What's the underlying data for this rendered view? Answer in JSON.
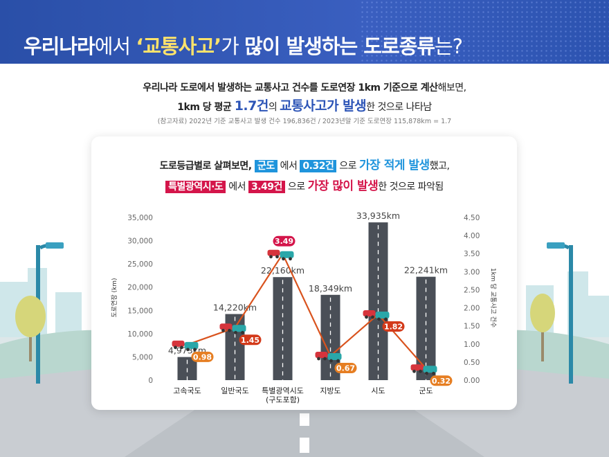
{
  "header": {
    "title_part1": "우리나라",
    "title_part2": "에서 ",
    "title_quote": "‘교통사고’",
    "title_part3": "가 ",
    "title_part4": "많이 발생하는 도로종류",
    "title_part5": "는?"
  },
  "intro": {
    "line1_a": "우리나라 도로에서 발생하는 교통사고 건수를 도로연장 1km 기준으로 계산",
    "line1_b": "해보면,",
    "line2_a": "1km 당 평균 ",
    "line2_b": "1.7건",
    "line2_c": "의 ",
    "line2_d": "교통사고가 발생",
    "line2_e": "한 것으로 나타남",
    "reference": "(참고자료) 2022년 기준 교통사고 발생 건수 196,836건 / 2023년말 기준 도로연장 115,878km = 1.7"
  },
  "summary": {
    "l1_a": "도로등급별로 살펴보면, ",
    "l1_chip1": "군도",
    "l1_b": " 에서 ",
    "l1_chip2": "0.32건",
    "l1_c": " 으로 ",
    "l1_d": "가장 적게 발생",
    "l1_e": "했고,",
    "l2_chip1": "특별광역시·도",
    "l2_b": " 에서 ",
    "l2_chip2": "3.49건",
    "l2_c": " 으로 ",
    "l2_d": "가장 많이 발생",
    "l2_e": "한 것으로 파악됨"
  },
  "colors": {
    "header": "#2c53b0",
    "bar": "#4a4f57",
    "line": "#d9531e",
    "label_red": "#d4154a",
    "label_orange": "#e67e22",
    "accent_blue": "#1f94dc"
  },
  "chart_data": {
    "type": "bar",
    "categories": [
      "고속국도",
      "일반국도",
      "특별광역시도\n(구도포함)",
      "지방도",
      "시도",
      "군도"
    ],
    "series": [
      {
        "values": [
          4973,
          14220,
          22160,
          18349,
          33935,
          22241
        ],
        "labels": [
          "4,973km",
          "14,220km",
          "22,160km",
          "18,349km",
          "33,935km",
          "22,241km"
        ]
      },
      {
        "type": "line",
        "values": [
          0.98,
          1.45,
          3.49,
          0.67,
          1.82,
          0.32
        ],
        "labels": [
          "0.98",
          "1.45",
          "3.49",
          "0.67",
          "1.82",
          "0.32"
        ]
      }
    ],
    "ylabel": "도로연장 (km)",
    "y2label": "1km 당 교통사고 건수",
    "ylim": [
      0,
      35000
    ],
    "y2lim": [
      0,
      4.5
    ],
    "yticks": [
      "0",
      "5,000",
      "10,000",
      "15,000",
      "20,000",
      "25,000",
      "30,000",
      "35,000"
    ],
    "y2ticks": [
      "0.00",
      "0.50",
      "1.00",
      "1.50",
      "2.00",
      "2.50",
      "3.00",
      "3.50",
      "4.00",
      "4.50"
    ],
    "grid": false,
    "legend": "none"
  }
}
